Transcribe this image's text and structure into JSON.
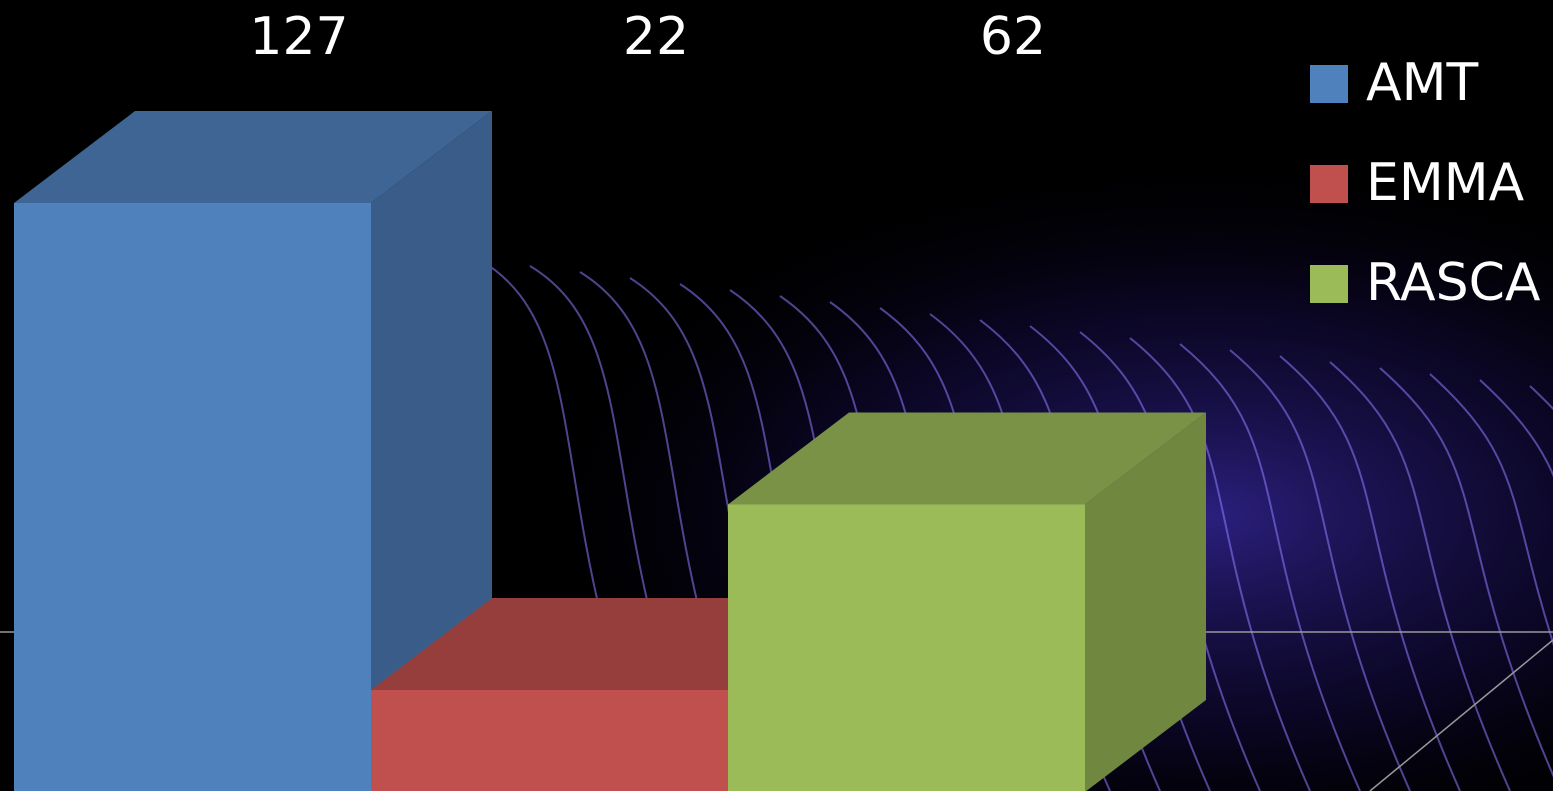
{
  "chart_data": {
    "type": "bar",
    "series": [
      {
        "name": "AMT",
        "color": "#4f81bd",
        "values": [
          127
        ]
      },
      {
        "name": "EMMA",
        "color": "#c0504d",
        "values": [
          22
        ]
      },
      {
        "name": "RASCA",
        "color": "#9bbb59",
        "values": [
          62
        ]
      }
    ],
    "legend": "right"
  }
}
